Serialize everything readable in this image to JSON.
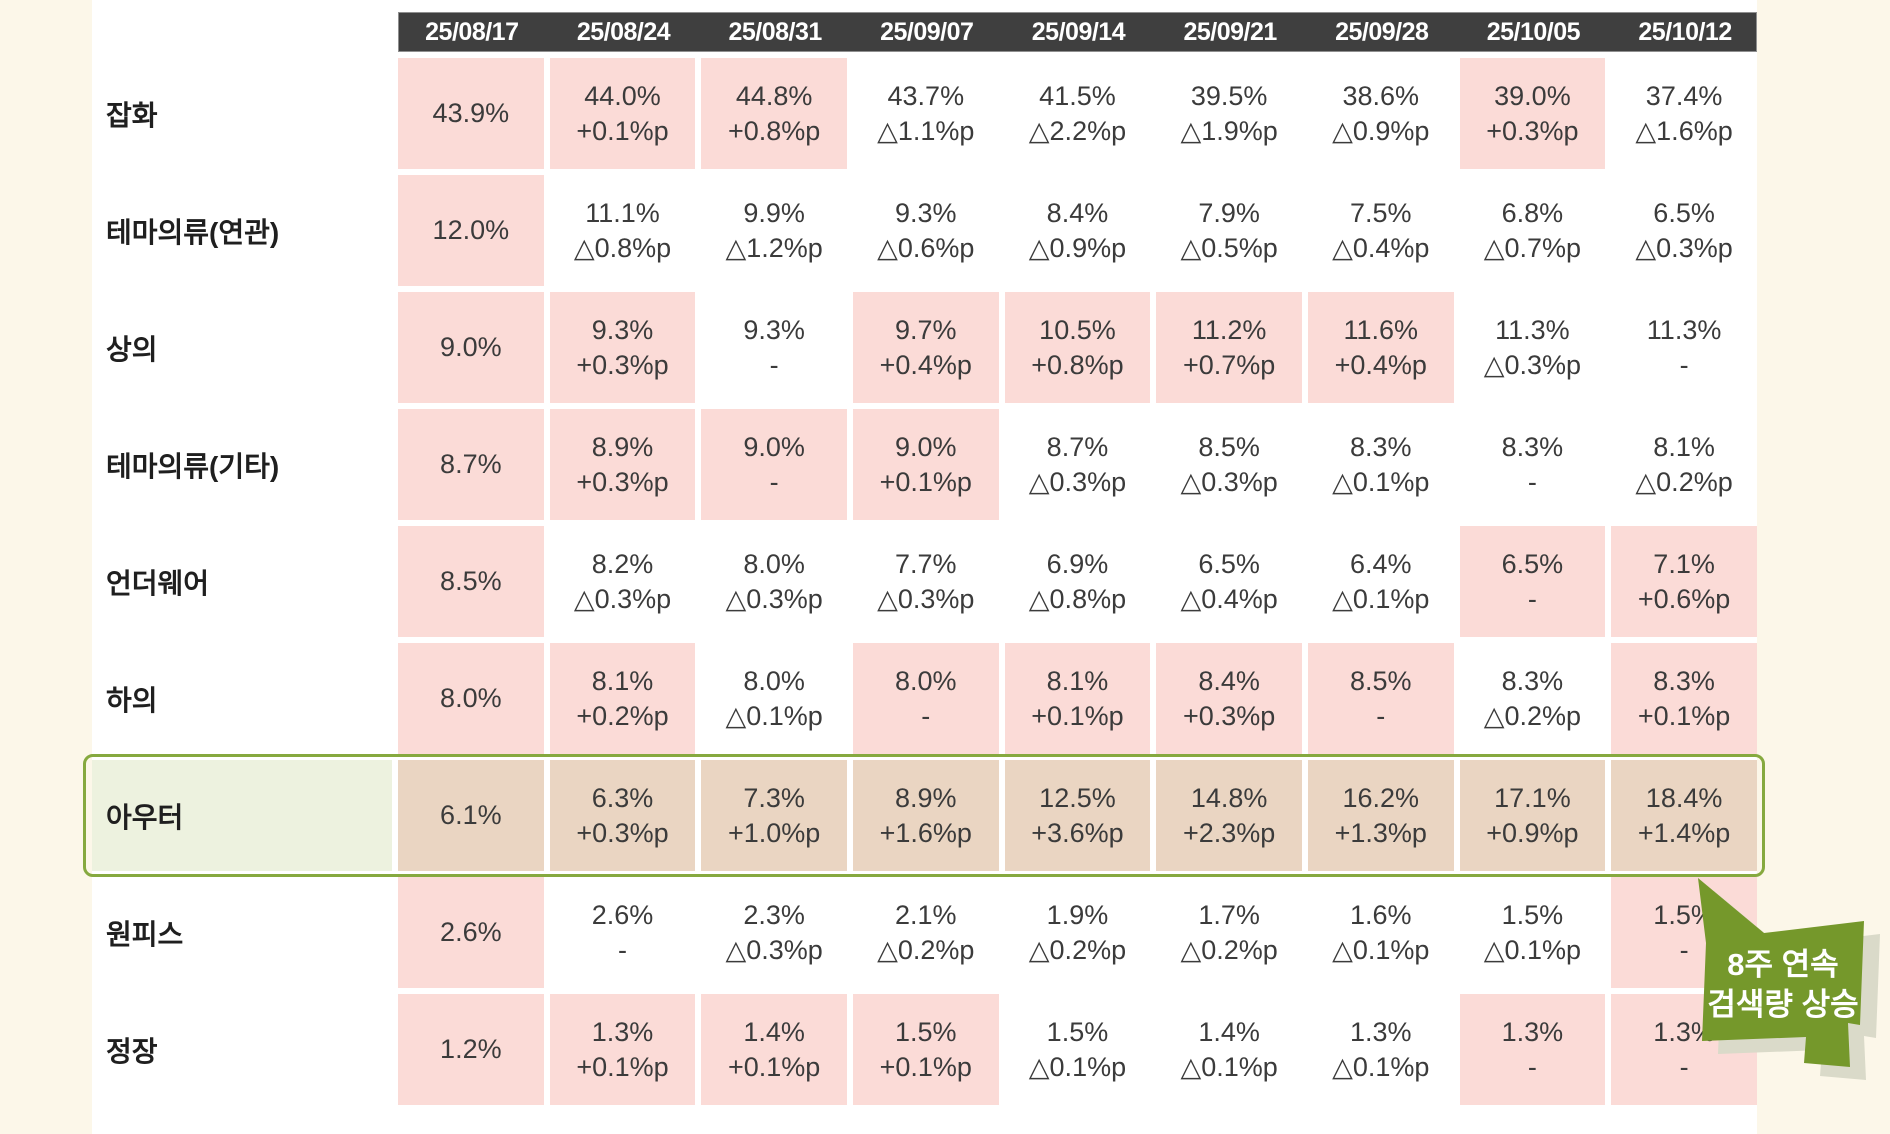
{
  "colors": {
    "page_background": "#fcf7e9",
    "table_background": "#ffffff",
    "header_background": "#3f3f3f",
    "header_text": "#ffffff",
    "cell_up_pink": "#fbdbd7",
    "cell_down_white": "#ffffff",
    "highlight_cell_tan": "#ead5c2",
    "highlight_label_green": "#edf2df",
    "highlight_border_green": "#86a93f",
    "callout_green": "#75982b",
    "callout_shadow": "#dadac9",
    "text_dark": "#3b3b3b"
  },
  "chart_data": {
    "type": "table",
    "title": "",
    "columns": [
      "25/08/17",
      "25/08/24",
      "25/08/31",
      "25/09/07",
      "25/09/14",
      "25/09/21",
      "25/09/28",
      "25/10/05",
      "25/10/12"
    ],
    "rows": [
      {
        "label": "잡화",
        "highlight": false,
        "cells": [
          {
            "v": "43.9%",
            "c": "",
            "bg": "pink"
          },
          {
            "v": "44.0%",
            "c": "+0.1%p",
            "bg": "pink"
          },
          {
            "v": "44.8%",
            "c": "+0.8%p",
            "bg": "pink"
          },
          {
            "v": "43.7%",
            "c": "△1.1%p",
            "bg": "white"
          },
          {
            "v": "41.5%",
            "c": "△2.2%p",
            "bg": "white"
          },
          {
            "v": "39.5%",
            "c": "△1.9%p",
            "bg": "white"
          },
          {
            "v": "38.6%",
            "c": "△0.9%p",
            "bg": "white"
          },
          {
            "v": "39.0%",
            "c": "+0.3%p",
            "bg": "pink"
          },
          {
            "v": "37.4%",
            "c": "△1.6%p",
            "bg": "white"
          }
        ]
      },
      {
        "label": "테마의류(연관)",
        "highlight": false,
        "cells": [
          {
            "v": "12.0%",
            "c": "",
            "bg": "pink"
          },
          {
            "v": "11.1%",
            "c": "△0.8%p",
            "bg": "white"
          },
          {
            "v": "9.9%",
            "c": "△1.2%p",
            "bg": "white"
          },
          {
            "v": "9.3%",
            "c": "△0.6%p",
            "bg": "white"
          },
          {
            "v": "8.4%",
            "c": "△0.9%p",
            "bg": "white"
          },
          {
            "v": "7.9%",
            "c": "△0.5%p",
            "bg": "white"
          },
          {
            "v": "7.5%",
            "c": "△0.4%p",
            "bg": "white"
          },
          {
            "v": "6.8%",
            "c": "△0.7%p",
            "bg": "white"
          },
          {
            "v": "6.5%",
            "c": "△0.3%p",
            "bg": "white"
          }
        ]
      },
      {
        "label": "상의",
        "highlight": false,
        "cells": [
          {
            "v": "9.0%",
            "c": "",
            "bg": "pink"
          },
          {
            "v": "9.3%",
            "c": "+0.3%p",
            "bg": "pink"
          },
          {
            "v": "9.3%",
            "c": "-",
            "bg": "white"
          },
          {
            "v": "9.7%",
            "c": "+0.4%p",
            "bg": "pink"
          },
          {
            "v": "10.5%",
            "c": "+0.8%p",
            "bg": "pink"
          },
          {
            "v": "11.2%",
            "c": "+0.7%p",
            "bg": "pink"
          },
          {
            "v": "11.6%",
            "c": "+0.4%p",
            "bg": "pink"
          },
          {
            "v": "11.3%",
            "c": "△0.3%p",
            "bg": "white"
          },
          {
            "v": "11.3%",
            "c": "-",
            "bg": "white"
          }
        ]
      },
      {
        "label": "테마의류(기타)",
        "highlight": false,
        "cells": [
          {
            "v": "8.7%",
            "c": "",
            "bg": "pink"
          },
          {
            "v": "8.9%",
            "c": "+0.3%p",
            "bg": "pink"
          },
          {
            "v": "9.0%",
            "c": "-",
            "bg": "pink"
          },
          {
            "v": "9.0%",
            "c": "+0.1%p",
            "bg": "pink"
          },
          {
            "v": "8.7%",
            "c": "△0.3%p",
            "bg": "white"
          },
          {
            "v": "8.5%",
            "c": "△0.3%p",
            "bg": "white"
          },
          {
            "v": "8.3%",
            "c": "△0.1%p",
            "bg": "white"
          },
          {
            "v": "8.3%",
            "c": "-",
            "bg": "white"
          },
          {
            "v": "8.1%",
            "c": "△0.2%p",
            "bg": "white"
          }
        ]
      },
      {
        "label": "언더웨어",
        "highlight": false,
        "cells": [
          {
            "v": "8.5%",
            "c": "",
            "bg": "pink"
          },
          {
            "v": "8.2%",
            "c": "△0.3%p",
            "bg": "white"
          },
          {
            "v": "8.0%",
            "c": "△0.3%p",
            "bg": "white"
          },
          {
            "v": "7.7%",
            "c": "△0.3%p",
            "bg": "white"
          },
          {
            "v": "6.9%",
            "c": "△0.8%p",
            "bg": "white"
          },
          {
            "v": "6.5%",
            "c": "△0.4%p",
            "bg": "white"
          },
          {
            "v": "6.4%",
            "c": "△0.1%p",
            "bg": "white"
          },
          {
            "v": "6.5%",
            "c": "-",
            "bg": "pink"
          },
          {
            "v": "7.1%",
            "c": "+0.6%p",
            "bg": "pink"
          }
        ]
      },
      {
        "label": "하의",
        "highlight": false,
        "cells": [
          {
            "v": "8.0%",
            "c": "",
            "bg": "pink"
          },
          {
            "v": "8.1%",
            "c": "+0.2%p",
            "bg": "pink"
          },
          {
            "v": "8.0%",
            "c": "△0.1%p",
            "bg": "white"
          },
          {
            "v": "8.0%",
            "c": "-",
            "bg": "pink"
          },
          {
            "v": "8.1%",
            "c": "+0.1%p",
            "bg": "pink"
          },
          {
            "v": "8.4%",
            "c": "+0.3%p",
            "bg": "pink"
          },
          {
            "v": "8.5%",
            "c": "-",
            "bg": "pink"
          },
          {
            "v": "8.3%",
            "c": "△0.2%p",
            "bg": "white"
          },
          {
            "v": "8.3%",
            "c": "+0.1%p",
            "bg": "pink"
          }
        ]
      },
      {
        "label": "아우터",
        "highlight": true,
        "cells": [
          {
            "v": "6.1%",
            "c": "",
            "bg": "tan"
          },
          {
            "v": "6.3%",
            "c": "+0.3%p",
            "bg": "tan"
          },
          {
            "v": "7.3%",
            "c": "+1.0%p",
            "bg": "tan"
          },
          {
            "v": "8.9%",
            "c": "+1.6%p",
            "bg": "tan"
          },
          {
            "v": "12.5%",
            "c": "+3.6%p",
            "bg": "tan"
          },
          {
            "v": "14.8%",
            "c": "+2.3%p",
            "bg": "tan"
          },
          {
            "v": "16.2%",
            "c": "+1.3%p",
            "bg": "tan"
          },
          {
            "v": "17.1%",
            "c": "+0.9%p",
            "bg": "tan"
          },
          {
            "v": "18.4%",
            "c": "+1.4%p",
            "bg": "tan"
          }
        ]
      },
      {
        "label": "원피스",
        "highlight": false,
        "cells": [
          {
            "v": "2.6%",
            "c": "",
            "bg": "pink"
          },
          {
            "v": "2.6%",
            "c": "-",
            "bg": "white"
          },
          {
            "v": "2.3%",
            "c": "△0.3%p",
            "bg": "white"
          },
          {
            "v": "2.1%",
            "c": "△0.2%p",
            "bg": "white"
          },
          {
            "v": "1.9%",
            "c": "△0.2%p",
            "bg": "white"
          },
          {
            "v": "1.7%",
            "c": "△0.2%p",
            "bg": "white"
          },
          {
            "v": "1.6%",
            "c": "△0.1%p",
            "bg": "white"
          },
          {
            "v": "1.5%",
            "c": "△0.1%p",
            "bg": "white"
          },
          {
            "v": "1.5%",
            "c": "-",
            "bg": "pink"
          }
        ]
      },
      {
        "label": "정장",
        "highlight": false,
        "cells": [
          {
            "v": "1.2%",
            "c": "",
            "bg": "pink"
          },
          {
            "v": "1.3%",
            "c": "+0.1%p",
            "bg": "pink"
          },
          {
            "v": "1.4%",
            "c": "+0.1%p",
            "bg": "pink"
          },
          {
            "v": "1.5%",
            "c": "+0.1%p",
            "bg": "pink"
          },
          {
            "v": "1.5%",
            "c": "△0.1%p",
            "bg": "white"
          },
          {
            "v": "1.4%",
            "c": "△0.1%p",
            "bg": "white"
          },
          {
            "v": "1.3%",
            "c": "△0.1%p",
            "bg": "white"
          },
          {
            "v": "1.3%",
            "c": "-",
            "bg": "pink"
          },
          {
            "v": "1.3%",
            "c": "-",
            "bg": "pink"
          }
        ]
      }
    ]
  },
  "callout": {
    "line1": "8주 연속",
    "line2": "검색량 상승"
  }
}
